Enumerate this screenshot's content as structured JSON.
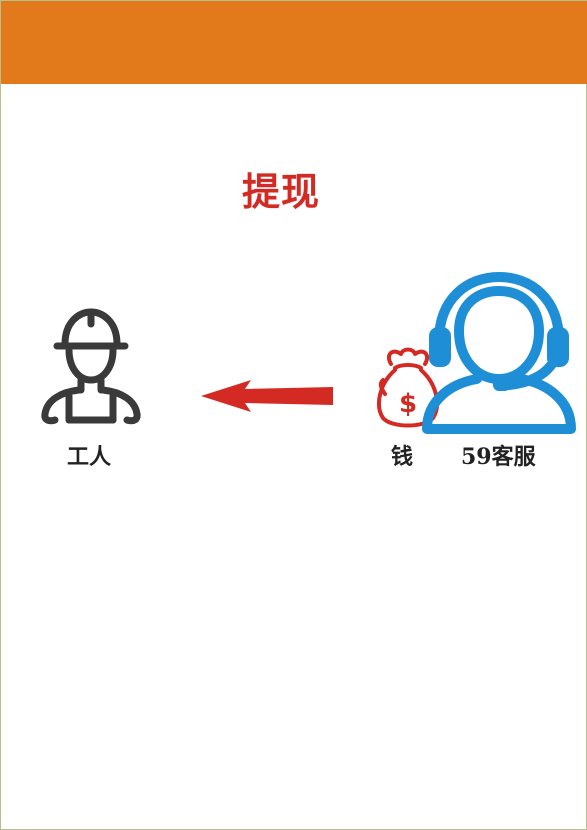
{
  "title": "提现",
  "colors": {
    "header": "#e2791b",
    "title": "#d42a24",
    "arrow": "#d42a24",
    "money": "#d42a24",
    "agent": "#1e8fd6",
    "worker": "#3a3a3a"
  },
  "nodes": {
    "worker": {
      "label": "工人",
      "icon": "construction-worker-icon"
    },
    "money": {
      "label": "钱",
      "icon": "money-bag-icon"
    },
    "agent": {
      "label": "59客服",
      "icon": "customer-service-headset-icon"
    }
  },
  "edge": {
    "from": "agent",
    "to": "worker",
    "icon": "left-arrow-icon"
  }
}
